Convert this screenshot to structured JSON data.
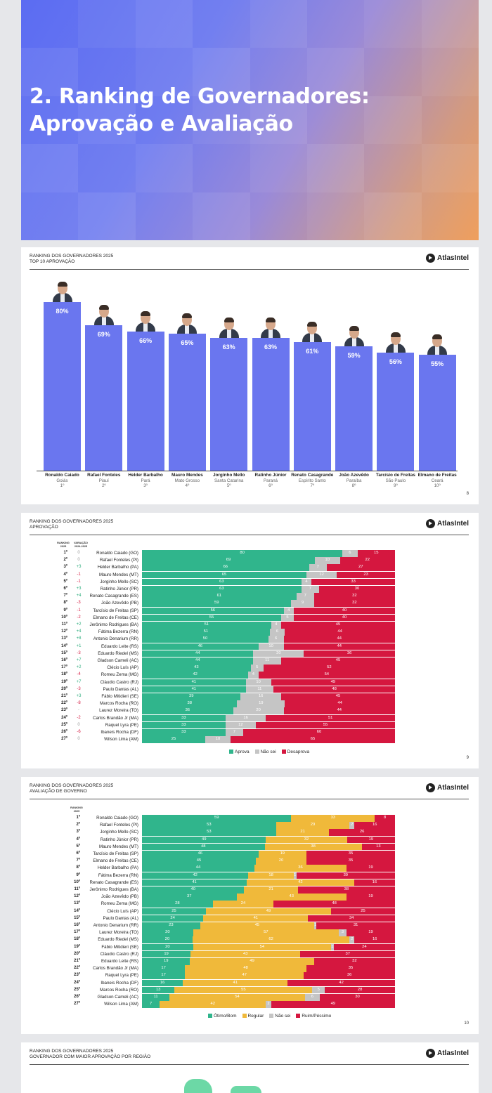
{
  "hero": {
    "title_line1": "2. Ranking de Governadores:",
    "title_line2": "Aprovação e Avaliação"
  },
  "brand": "AtlasIntel",
  "colors": {
    "approve": "#30b58c",
    "unknown": "#c5c5c5",
    "disapprove": "#d5173f",
    "good": "#30b58c",
    "regular": "#f0b93a",
    "bad": "#d5173f",
    "bar": "#6a76ef",
    "up": "#2fae7e",
    "down": "#d5173f"
  },
  "slide1": {
    "title": "RANKING DOS GOVERNADORES 2025",
    "subtitle": "TOP 10 APROVAÇÃO",
    "page": "8",
    "items": [
      {
        "name": "Ronaldo Caiado",
        "state": "Goiás",
        "rank": "1º",
        "label": "80%",
        "value": 80
      },
      {
        "name": "Rafael Fonteles",
        "state": "Piauí",
        "rank": "2º",
        "label": "69%",
        "value": 69
      },
      {
        "name": "Helder Barbalho",
        "state": "Pará",
        "rank": "3º",
        "label": "66%",
        "value": 66
      },
      {
        "name": "Mauro Mendes",
        "state": "Mato Grosso",
        "rank": "4º",
        "label": "65%",
        "value": 65
      },
      {
        "name": "Jorginho Mello",
        "state": "Santa Catarina",
        "rank": "5º",
        "label": "63%",
        "value": 63
      },
      {
        "name": "Ratinho Júnior",
        "state": "Paraná",
        "rank": "6º",
        "label": "63%",
        "value": 63
      },
      {
        "name": "Renato Casagrande",
        "state": "Espírito Santo",
        "rank": "7º",
        "label": "61%",
        "value": 61
      },
      {
        "name": "João Azevêdo",
        "state": "Paraíba",
        "rank": "8º",
        "label": "59%",
        "value": 59
      },
      {
        "name": "Tarcísio de Freitas",
        "state": "São Paulo",
        "rank": "9º",
        "label": "56%",
        "value": 56
      },
      {
        "name": "Elmano de Freitas",
        "state": "Ceará",
        "rank": "10º",
        "label": "55%",
        "value": 55
      }
    ]
  },
  "slide2": {
    "title": "RANKING DOS GOVERNADORES 2025",
    "subtitle": "APROVAÇÃO",
    "col_rank": "RANKING 2025",
    "col_var": "VARIAÇÃO 2024-2025",
    "page": "9",
    "legend": [
      "Aprova",
      "Não sei",
      "Desaprova"
    ],
    "rows": [
      {
        "rank": "1º",
        "var": "0",
        "name": "Ronaldo Caiado (GO)",
        "a": 80,
        "n": 6,
        "d": 15
      },
      {
        "rank": "2º",
        "var": "0",
        "name": "Rafael Fonteles (PI)",
        "a": 69,
        "n": 10,
        "d": 22
      },
      {
        "rank": "3º",
        "var": "+3",
        "name": "Helder Barbalho (PA)",
        "a": 66,
        "n": 7,
        "d": 27
      },
      {
        "rank": "4º",
        "var": "-1",
        "name": "Mauro Mendes (MT)",
        "a": 65,
        "n": 12,
        "d": 23
      },
      {
        "rank": "5º",
        "var": "-1",
        "name": "Jorginho Mello (SC)",
        "a": 63,
        "n": 4,
        "d": 33
      },
      {
        "rank": "6º",
        "var": "+3",
        "name": "Ratinho Júnior (PR)",
        "a": 63,
        "n": 7,
        "d": 30
      },
      {
        "rank": "7º",
        "var": "+4",
        "name": "Renato Casagrande (ES)",
        "a": 61,
        "n": 7,
        "d": 32
      },
      {
        "rank": "8º",
        "var": "-3",
        "name": "João Azevêdo (PB)",
        "a": 59,
        "n": 9,
        "d": 32
      },
      {
        "rank": "9º",
        "var": "-1",
        "name": "Tarcísio de Freitas (SP)",
        "a": 56,
        "n": 4,
        "d": 40
      },
      {
        "rank": "10º",
        "var": "-2",
        "name": "Elmano de Freitas (CE)",
        "a": 55,
        "n": 5,
        "d": 40
      },
      {
        "rank": "11º",
        "var": "+2",
        "name": "Jerônimo Rodrigues (BA)",
        "a": 51,
        "n": 4,
        "d": 45
      },
      {
        "rank": "12º",
        "var": "+4",
        "name": "Fátima Bezerra (RN)",
        "a": 51,
        "n": 6,
        "d": 44
      },
      {
        "rank": "13º",
        "var": "+8",
        "name": "Antonio Denarium (RR)",
        "a": 50,
        "n": 6,
        "d": 44
      },
      {
        "rank": "14º",
        "var": "+1",
        "name": "Eduardo Leite (RS)",
        "a": 46,
        "n": 10,
        "d": 44
      },
      {
        "rank": "15º",
        "var": "-3",
        "name": "Eduardo Riedel (MS)",
        "a": 44,
        "n": 20,
        "d": 36
      },
      {
        "rank": "16º",
        "var": "+7",
        "name": "Gladson Cameli (AC)",
        "a": 44,
        "n": 11,
        "d": 45
      },
      {
        "rank": "17º",
        "var": "+2",
        "name": "Clécio Luís (AP)",
        "a": 43,
        "n": 5,
        "d": 52
      },
      {
        "rank": "18º",
        "var": "-4",
        "name": "Romeu Zema (MG)",
        "a": 42,
        "n": 4,
        "d": 54
      },
      {
        "rank": "19º",
        "var": "+7",
        "name": "Cláudio Castro (RJ)",
        "a": 41,
        "n": 10,
        "d": 49
      },
      {
        "rank": "20º",
        "var": "-3",
        "name": "Paulo Dantas (AL)",
        "a": 41,
        "n": 11,
        "d": 48
      },
      {
        "rank": "21º",
        "var": "+3",
        "name": "Fábio Mitidieri (SE)",
        "a": 39,
        "n": 16,
        "d": 45
      },
      {
        "rank": "22º",
        "var": "-8",
        "name": "Marcos Rocha (RO)",
        "a": 38,
        "n": 19,
        "d": 44
      },
      {
        "rank": "23º",
        "var": "-",
        "name": "Laurez Moreira (TO)",
        "a": 36,
        "n": 20,
        "d": 44
      },
      {
        "rank": "24º",
        "var": "-2",
        "name": "Carlos Brandão Jr (MA)",
        "a": 33,
        "n": 16,
        "d": 51
      },
      {
        "rank": "25º",
        "var": "0",
        "name": "Raquel Lyra (PE)",
        "a": 33,
        "n": 12,
        "d": 55
      },
      {
        "rank": "26º",
        "var": "-6",
        "name": "Ibaneis Rocha (DF)",
        "a": 33,
        "n": 7,
        "d": 60
      },
      {
        "rank": "27º",
        "var": "0",
        "name": "Wilson Lima (AM)",
        "a": 25,
        "n": 10,
        "d": 65
      }
    ]
  },
  "slide3": {
    "title": "RANKING DOS GOVERNADORES 2025",
    "subtitle": "AVALIAÇÃO DE GOVERNO",
    "col_rank": "RANKING 2025",
    "page": "10",
    "legend": [
      "Ótimo/Bom",
      "Regular",
      "Não sei",
      "Ruim/Péssimo"
    ],
    "rows": [
      {
        "rank": "1º",
        "name": "Ronaldo Caiado (GO)",
        "g": 59,
        "r": 33,
        "n": 0,
        "b": 8
      },
      {
        "rank": "2º",
        "name": "Rafael Fonteles (PI)",
        "g": 53,
        "r": 29,
        "n": 2,
        "b": 16
      },
      {
        "rank": "3º",
        "name": "Jorginho Mello (SC)",
        "g": 53,
        "r": 21,
        "n": 0,
        "b": 26
      },
      {
        "rank": "4º",
        "name": "Ratinho Júnior (PR)",
        "g": 49,
        "r": 32,
        "n": 0,
        "b": 19
      },
      {
        "rank": "5º",
        "name": "Mauro Mendes (MT)",
        "g": 48,
        "r": 38,
        "n": 0,
        "b": 13
      },
      {
        "rank": "6º",
        "name": "Tarcísio de Freitas (SP)",
        "g": 46,
        "r": 19,
        "n": 0,
        "b": 35
      },
      {
        "rank": "7º",
        "name": "Elmano de Freitas (CE)",
        "g": 45,
        "r": 20,
        "n": 0,
        "b": 35
      },
      {
        "rank": "8º",
        "name": "Helder Barbalho (PA)",
        "g": 44,
        "r": 36,
        "n": 0,
        "b": 19
      },
      {
        "rank": "9º",
        "name": "Fátima Bezerra (RN)",
        "g": 42,
        "r": 18,
        "n": 1,
        "b": 39
      },
      {
        "rank": "10º",
        "name": "Renato Casagrande (ES)",
        "g": 41,
        "r": 42,
        "n": 0,
        "b": 16
      },
      {
        "rank": "11º",
        "name": "Jerônimo Rodrigues (BA)",
        "g": 40,
        "r": 21,
        "n": 0,
        "b": 38
      },
      {
        "rank": "12º",
        "name": "João Azevêdo (PB)",
        "g": 37,
        "r": 43,
        "n": 0,
        "b": 19
      },
      {
        "rank": "13º",
        "name": "Romeu Zema (MG)",
        "g": 28,
        "r": 24,
        "n": 0,
        "b": 48
      },
      {
        "rank": "14º",
        "name": "Clécio Luís (AP)",
        "g": 25,
        "r": 49,
        "n": 0,
        "b": 25
      },
      {
        "rank": "15º",
        "name": "Paulo Dantas (AL)",
        "g": 24,
        "r": 41,
        "n": 0,
        "b": 34
      },
      {
        "rank": "16º",
        "name": "Antonio Denarium (RR)",
        "g": 23,
        "r": 45,
        "n": 1,
        "b": 31
      },
      {
        "rank": "17º",
        "name": "Laurez Moreira (TO)",
        "g": 20,
        "r": 57,
        "n": 3,
        "b": 19
      },
      {
        "rank": "18º",
        "name": "Eduardo Riedel (MS)",
        "g": 20,
        "r": 62,
        "n": 2,
        "b": 16
      },
      {
        "rank": "19º",
        "name": "Fábio Mitidieri (SE)",
        "g": 20,
        "r": 54,
        "n": 1,
        "b": 24
      },
      {
        "rank": "20º",
        "name": "Cláudio Castro (RJ)",
        "g": 19,
        "r": 43,
        "n": 0,
        "b": 37
      },
      {
        "rank": "21º",
        "name": "Eduardo Leite (RS)",
        "g": 19,
        "r": 49,
        "n": 0,
        "b": 32
      },
      {
        "rank": "22º",
        "name": "Carlos Brandão Jr (MA)",
        "g": 17,
        "r": 48,
        "n": 0,
        "b": 35
      },
      {
        "rank": "23º",
        "name": "Raquel Lyra (PE)",
        "g": 17,
        "r": 47,
        "n": 0,
        "b": 36
      },
      {
        "rank": "24º",
        "name": "Ibaneis Rocha (DF)",
        "g": 16,
        "r": 41,
        "n": 0,
        "b": 42
      },
      {
        "rank": "25º",
        "name": "Marcos Rocha (RO)",
        "g": 13,
        "r": 55,
        "n": 5,
        "b": 28
      },
      {
        "rank": "26º",
        "name": "Gladson Cameli (AC)",
        "g": 11,
        "r": 54,
        "n": 6,
        "b": 30
      },
      {
        "rank": "27º",
        "name": "Wilson Lima (AM)",
        "g": 7,
        "r": 42,
        "n": 2,
        "b": 49
      }
    ]
  },
  "slide4": {
    "title": "RANKING DOS GOVERNADORES 2025",
    "subtitle": "GOVERNADOR COM MAIOR APROVAÇÃO POR REGIÃO"
  }
}
